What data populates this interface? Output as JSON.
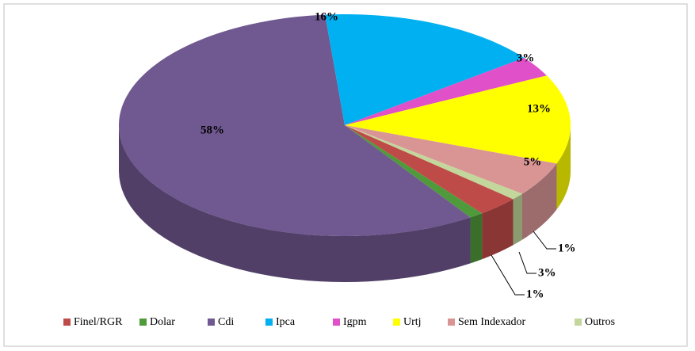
{
  "chart_data": {
    "type": "pie",
    "categories": [
      "Finel/RGR",
      "Dolar",
      "Cdi",
      "Ipca",
      "Igpm",
      "Urtj",
      "Sem Indexador",
      "Outros"
    ],
    "values": [
      3,
      1,
      58,
      16,
      3,
      13,
      5,
      1
    ],
    "value_labels": [
      "3%",
      "1%",
      "58%",
      "16%",
      "3%",
      "13%",
      "5%",
      "1%"
    ],
    "colors": [
      "#be4b48",
      "#4f9a3a",
      "#705890",
      "#00b0f0",
      "#e050c8",
      "#ffff00",
      "#d99594",
      "#c3d69b"
    ],
    "legend": "bottom"
  }
}
